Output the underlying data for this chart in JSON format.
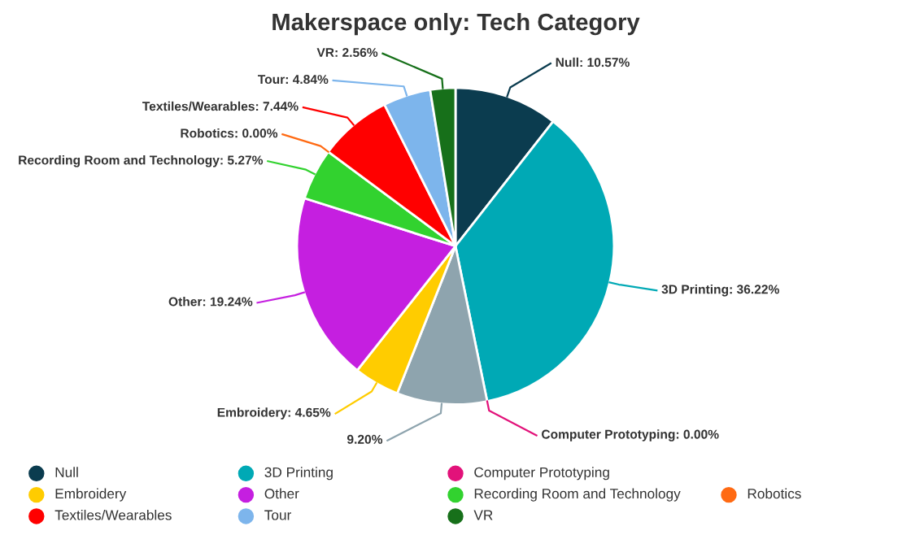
{
  "chart_data": {
    "type": "pie",
    "title": "Makerspace only: Tech Category",
    "categories": [
      "Null",
      "3D Printing",
      "Computer Prototyping",
      null,
      "Embroidery",
      "Other",
      "Recording Room and Technology",
      "Robotics",
      "Textiles/Wearables",
      "Tour",
      "VR"
    ],
    "values": [
      10.57,
      36.22,
      0.0,
      9.2,
      4.65,
      19.24,
      5.27,
      0.0,
      7.44,
      4.84,
      2.56
    ],
    "colors": [
      "#0b3c4f",
      "#00a9b5",
      "#e2127a",
      "#8ea4ae",
      "#ffcc00",
      "#c51fe0",
      "#32d22f",
      "#ff6a13",
      "#ff0000",
      "#7db5ec",
      "#17701a"
    ],
    "value_labels": [
      "Null: 10.57%",
      "3D Printing: 36.22%",
      "Computer Prototyping: 0.00%",
      "9.20%",
      "Embroidery: 4.65%",
      "Other: 19.24%",
      "Recording Room and Technology: 5.27%",
      "Robotics: 0.00%",
      "Textiles/Wearables: 7.44%",
      "Tour: 4.84%",
      "VR: 2.56%"
    ],
    "legend": "bottom"
  }
}
